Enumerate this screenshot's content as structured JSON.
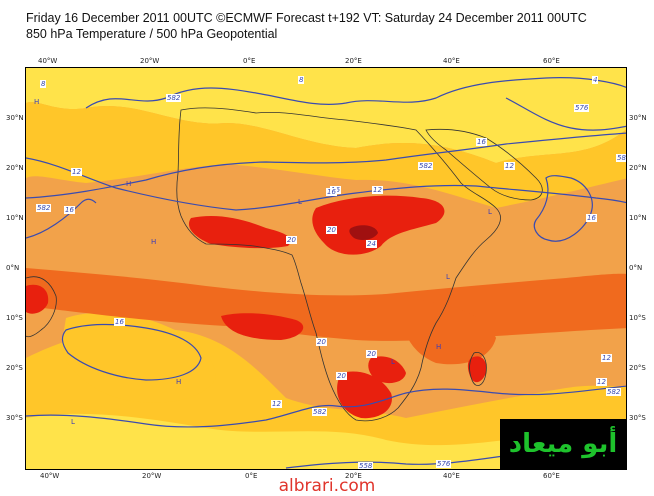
{
  "header": {
    "line1": "Friday 16 December 2011 00UTC ©ECMWF Forecast t+192 VT: Saturday 24 December 2011 00UTC",
    "line2": "850 hPa Temperature / 500 hPa Geopotential"
  },
  "axes": {
    "lon_labels_top": [
      "40°W",
      "20°W",
      "0°E",
      "20°E",
      "40°E",
      "60°E"
    ],
    "lon_labels_bottom": [
      "40°W",
      "20°W",
      "0°E",
      "20°E",
      "40°E",
      "60°E"
    ],
    "lat_labels_left": [
      "30°N",
      "20°N",
      "10°N",
      "0°N",
      "10°S",
      "20°S",
      "30°S"
    ],
    "lat_labels_right": [
      "30°N",
      "20°N",
      "10°N",
      "0°N",
      "10°S",
      "20°S",
      "30°S"
    ]
  },
  "contour_labels": {
    "geopotential": [
      "582",
      "582",
      "582",
      "576",
      "582",
      "582",
      "582",
      "576",
      "558"
    ],
    "temperature": [
      "8",
      "8",
      "12",
      "12",
      "12",
      "16",
      "16",
      "16",
      "16",
      "16",
      "16",
      "20",
      "20",
      "20",
      "20",
      "20",
      "24",
      "12",
      "12",
      "12",
      "4"
    ]
  },
  "pressure_marks": [
    "H",
    "H",
    "H",
    "L",
    "L",
    "L",
    "L",
    "H",
    "H",
    "L"
  ],
  "colors": {
    "cold": "#ffe34a",
    "mild": "#ffc629",
    "warm": "#f59a2a",
    "hot": "#f06a1e",
    "very_hot": "#e8200e",
    "extreme": "#a01010",
    "contour": "#3a4bb0",
    "coast": "#333333"
  },
  "logo": {
    "text": "أبو ميعاد"
  },
  "watermark": {
    "text": "albrari.com"
  }
}
